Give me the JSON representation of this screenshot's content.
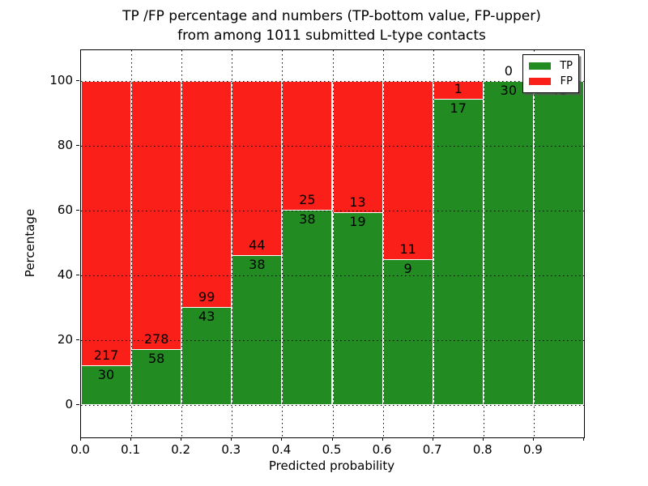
{
  "chart_data": {
    "type": "bar",
    "stacked": true,
    "normalized_to_percent": true,
    "title_line1": "TP /FP percentage and numbers (TP-bottom value, FP-upper)",
    "title_line2": "from among 1011 submitted L-type contacts",
    "xlabel": "Predicted probability",
    "ylabel": "Percentage",
    "x_tick_labels": [
      "0.0",
      "0.1",
      "0.2",
      "0.3",
      "0.4",
      "0.5",
      "0.6",
      "0.7",
      "0.8",
      "0.9"
    ],
    "y_tick_labels": [
      "0",
      "20",
      "40",
      "60",
      "80",
      "100"
    ],
    "ylim_percent": [
      -9.5,
      109.5
    ],
    "grid": true,
    "colors": {
      "tp": "#228B22",
      "fp": "#FA2019"
    },
    "legend": {
      "position": "upper right",
      "entries": [
        {
          "label": "TP",
          "color": "#228B22"
        },
        {
          "label": "FP",
          "color": "#FA2019"
        }
      ]
    },
    "bars": [
      {
        "bin": "0.0-0.1",
        "tp": 30,
        "fp": 217,
        "tp_pct": 12.15
      },
      {
        "bin": "0.1-0.2",
        "tp": 58,
        "fp": 278,
        "tp_pct": 17.26
      },
      {
        "bin": "0.2-0.3",
        "tp": 43,
        "fp": 99,
        "tp_pct": 30.28
      },
      {
        "bin": "0.3-0.4",
        "tp": 38,
        "fp": 44,
        "tp_pct": 46.34
      },
      {
        "bin": "0.4-0.5",
        "tp": 38,
        "fp": 25,
        "tp_pct": 60.32
      },
      {
        "bin": "0.5-0.6",
        "tp": 19,
        "fp": 13,
        "tp_pct": 59.38
      },
      {
        "bin": "0.6-0.7",
        "tp": 9,
        "fp": 11,
        "tp_pct": 45.0
      },
      {
        "bin": "0.7-0.8",
        "tp": 17,
        "fp": 1,
        "tp_pct": 94.44
      },
      {
        "bin": "0.8-0.9",
        "tp": 30,
        "fp": 0,
        "tp_pct": 100.0
      },
      {
        "bin": "0.9-1.0",
        "tp": 41,
        "fp": null,
        "tp_pct": 100.0,
        "fp_label_hidden": true
      }
    ]
  }
}
